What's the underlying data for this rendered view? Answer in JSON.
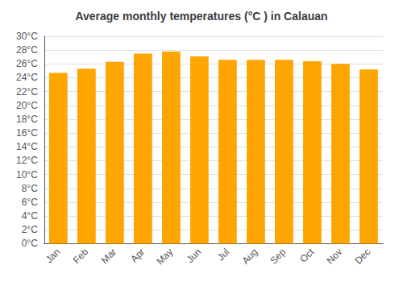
{
  "chart_data": {
    "type": "bar",
    "title": "Average monthly temperatures (°C ) in Calauan",
    "categories": [
      "Jan",
      "Feb",
      "Mar",
      "Apr",
      "May",
      "Jun",
      "Jul",
      "Aug",
      "Sep",
      "Oct",
      "Nov",
      "Dec"
    ],
    "values": [
      24.7,
      25.3,
      26.3,
      27.5,
      27.8,
      27.1,
      26.6,
      26.6,
      26.6,
      26.4,
      26.0,
      25.2
    ],
    "color": "#FFA500",
    "ylim": [
      0,
      30
    ],
    "yticks": [
      {
        "value": 0,
        "label": "0°C"
      },
      {
        "value": 2,
        "label": "2°C"
      },
      {
        "value": 4,
        "label": "4°C"
      },
      {
        "value": 6,
        "label": "6°C"
      },
      {
        "value": 8,
        "label": "8°C"
      },
      {
        "value": 10,
        "label": "10°C"
      },
      {
        "value": 12,
        "label": "12°C"
      },
      {
        "value": 14,
        "label": "14°C"
      },
      {
        "value": 16,
        "label": "16°C"
      },
      {
        "value": 18,
        "label": "18°C"
      },
      {
        "value": 20,
        "label": "20°C"
      },
      {
        "value": 22,
        "label": "22°C"
      },
      {
        "value": 24,
        "label": "24°C"
      },
      {
        "value": 26,
        "label": "26°C"
      },
      {
        "value": 28,
        "label": "28°C"
      },
      {
        "value": 30,
        "label": "30°C"
      }
    ],
    "grid": true
  }
}
